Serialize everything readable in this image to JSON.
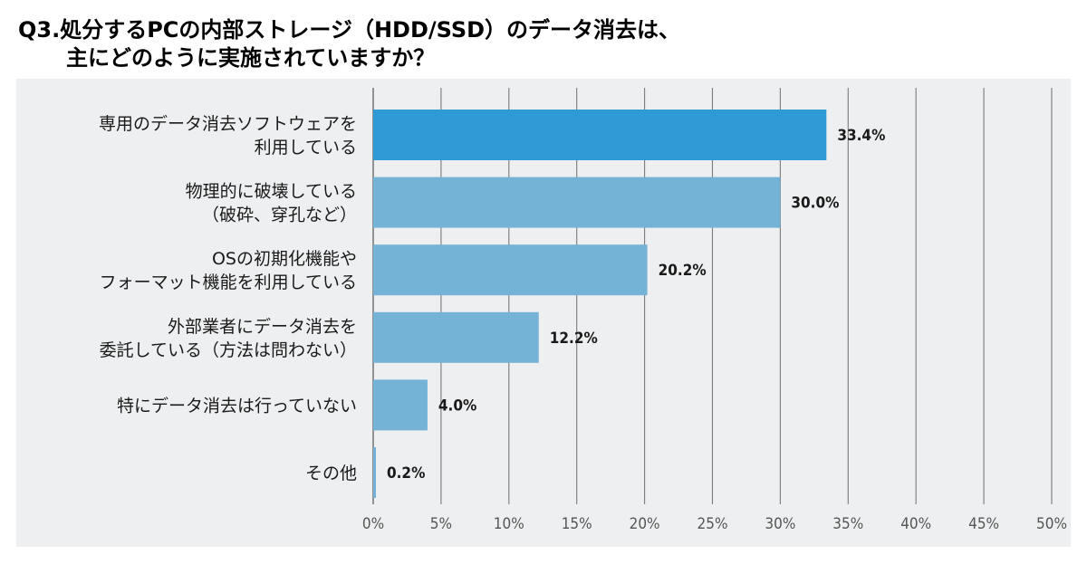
{
  "chart_data": {
    "type": "bar",
    "orientation": "horizontal",
    "title": [
      "Q3.処分するPCの内部ストレージ（HDD/SSD）のデータ消去は、",
      "主にどのように実施されていますか？"
    ],
    "categories": [
      [
        "専用のデータ消去ソフトウェアを",
        "利用している"
      ],
      [
        "物理的に破壊している",
        "（破砕、穿孔など）"
      ],
      [
        "OSの初期化機能や",
        "フォーマット機能を利用している"
      ],
      [
        "外部業者にデータ消去を",
        "委託している（方法は問わない）"
      ],
      [
        "特にデータ消去は行っていない"
      ],
      [
        "その他"
      ]
    ],
    "values": [
      33.4,
      30.0,
      20.2,
      12.2,
      4.0,
      0.2
    ],
    "value_labels": [
      "33.4%",
      "30.0%",
      "20.2%",
      "12.2%",
      "4.0%",
      "0.2%"
    ],
    "x_ticks": [
      "0%",
      "5%",
      "10%",
      "15%",
      "20%",
      "25%",
      "30%",
      "35%",
      "40%",
      "45%",
      "50%"
    ],
    "xlim": [
      0,
      50
    ],
    "grid": true,
    "colors": {
      "highlight": "#2e9ad6",
      "bar": "#74b2d6",
      "background": "#eeeff0",
      "grid": "#7a7a7a"
    }
  }
}
